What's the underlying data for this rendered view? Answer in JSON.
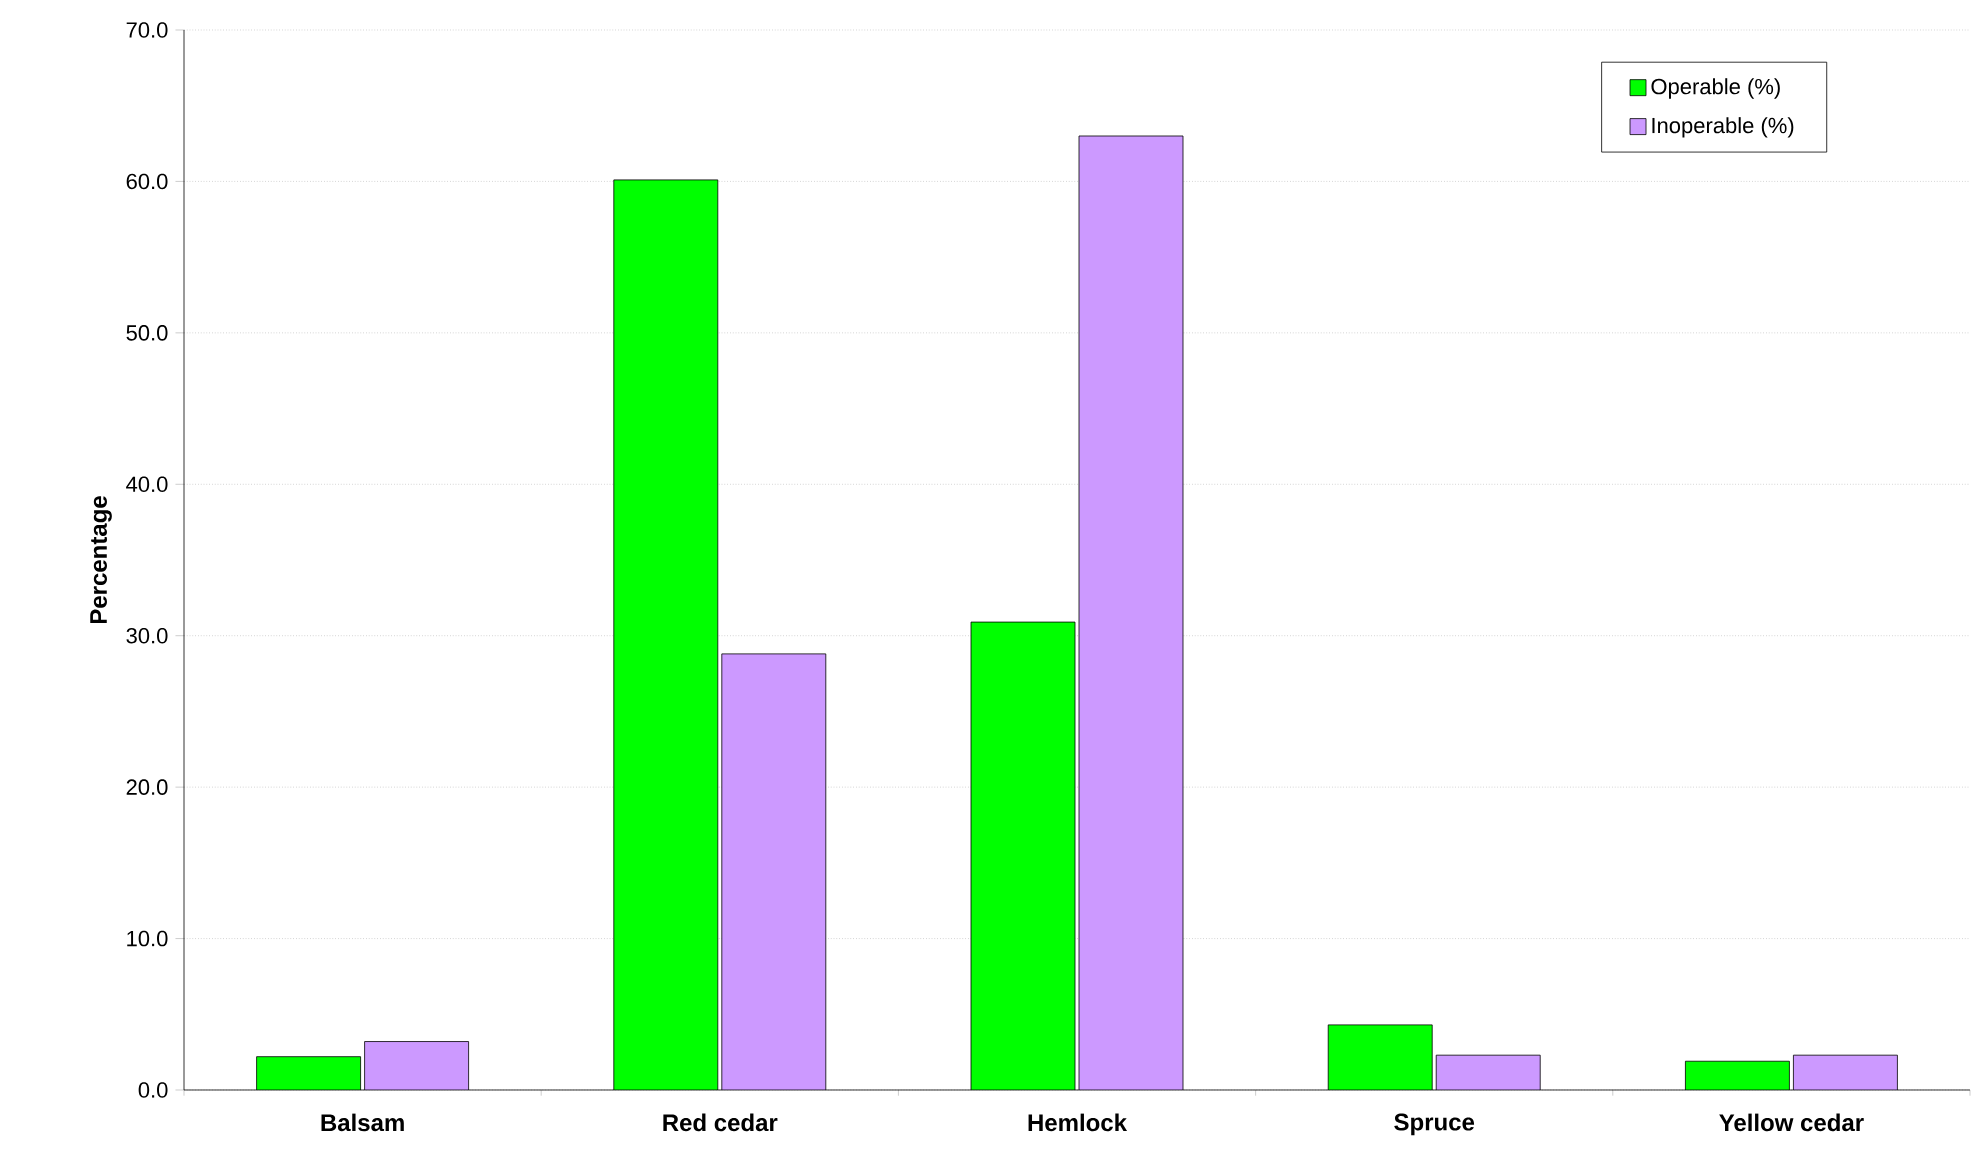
{
  "chart_data": {
    "type": "bar",
    "ylabel": "Percentage",
    "categories": [
      "Balsam",
      "Red cedar",
      "Hemlock",
      "Spruce",
      "Yellow cedar"
    ],
    "series": [
      {
        "name": "Operable (%)",
        "color": "#00ff00",
        "values": [
          2.2,
          60.1,
          30.9,
          4.3,
          1.9
        ]
      },
      {
        "name": "Inoperable (%)",
        "color": "#cc99ff",
        "values": [
          3.2,
          28.8,
          63.0,
          2.3,
          2.3
        ]
      }
    ],
    "ylim": [
      0,
      70
    ],
    "yticks": [
      {
        "value": 0,
        "label": "0.0"
      },
      {
        "value": 10,
        "label": "10.0"
      },
      {
        "value": 20,
        "label": "20.0"
      },
      {
        "value": 30,
        "label": "30.0"
      },
      {
        "value": 40,
        "label": "40.0"
      },
      {
        "value": 50,
        "label": "50.0"
      },
      {
        "value": 60,
        "label": "60.0"
      },
      {
        "value": 70,
        "label": "70.0"
      }
    ],
    "grid": "y",
    "legend": "top right"
  }
}
